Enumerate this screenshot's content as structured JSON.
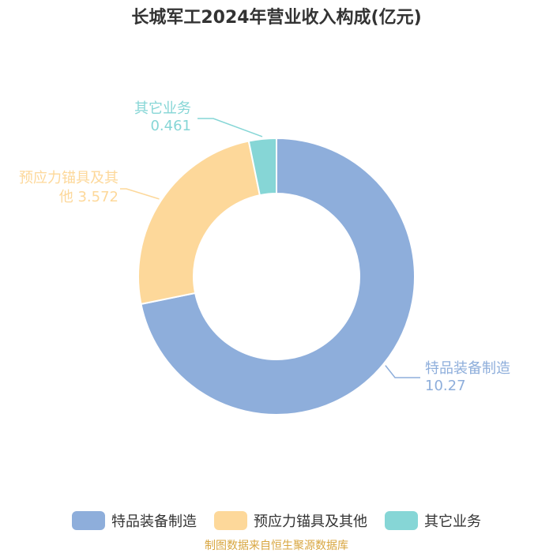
{
  "chart_data": {
    "type": "pie",
    "title": "长城军工2024年营业收入构成(亿元)",
    "slices": [
      {
        "name": "特品装备制造",
        "value": 10.27,
        "value_label": "10.27",
        "color": "#8eaedb"
      },
      {
        "name": "预应力锚具及其他",
        "value": 3.572,
        "value_label": "3.572",
        "color": "#fdd89a"
      },
      {
        "name": "其它业务",
        "value": 0.461,
        "value_label": "0.461",
        "color": "#86d6d6"
      }
    ],
    "legend": {
      "position": "bottom"
    }
  },
  "source": "制图数据来自恒生聚源数据库"
}
